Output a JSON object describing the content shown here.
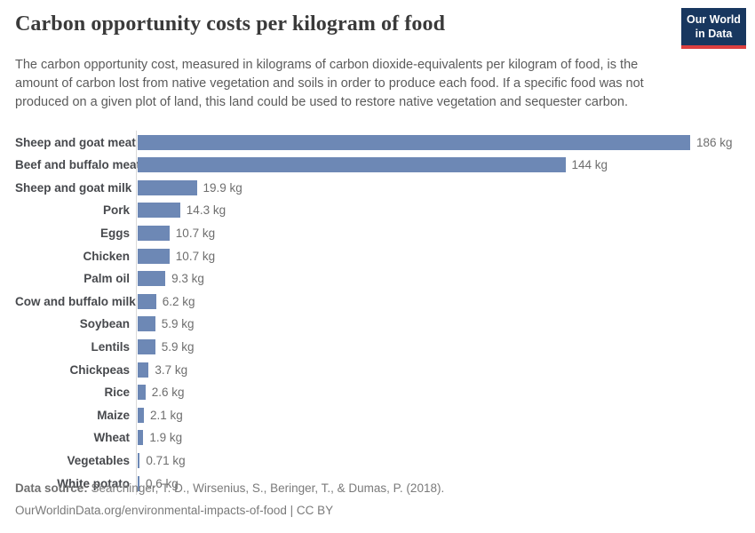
{
  "header": {
    "title": "Carbon opportunity costs per kilogram of food",
    "subtitle": "The carbon opportunity cost, measured in kilograms of carbon dioxide-equivalents per kilogram of food, is the amount of carbon lost from native vegetation and soils in order to produce each food. If a specific food was not produced on a given plot of land, this land could be used to restore native vegetation and sequester carbon."
  },
  "logo": {
    "line1": "Our World",
    "line2": "in Data",
    "bg_color": "#18375f",
    "stripe_color": "#dc3f3f"
  },
  "chart_data": {
    "type": "bar",
    "orientation": "horizontal",
    "title": "Carbon opportunity costs per kilogram of food",
    "xlabel": "",
    "ylabel": "",
    "unit": "kg",
    "xlim": [
      0,
      186
    ],
    "grid": false,
    "bar_color": "#6d88b5",
    "value_label_position": "right",
    "categories": [
      "Sheep and goat meat",
      "Beef and buffalo meat",
      "Sheep and goat milk",
      "Pork",
      "Eggs",
      "Chicken",
      "Palm oil",
      "Cow and buffalo milk",
      "Soybean",
      "Lentils",
      "Chickpeas",
      "Rice",
      "Maize",
      "Wheat",
      "Vegetables",
      "White potato"
    ],
    "values": [
      186,
      144,
      19.9,
      14.3,
      10.7,
      10.7,
      9.3,
      6.2,
      5.9,
      5.9,
      3.7,
      2.6,
      2.1,
      1.9,
      0.71,
      0.6
    ],
    "value_labels": [
      "186 kg",
      "144 kg",
      "19.9 kg",
      "14.3 kg",
      "10.7 kg",
      "10.7 kg",
      "9.3 kg",
      "6.2 kg",
      "5.9 kg",
      "5.9 kg",
      "3.7 kg",
      "2.6 kg",
      "2.1 kg",
      "1.9 kg",
      "0.71 kg",
      "0.6 kg"
    ]
  },
  "footer": {
    "datasource_label": "Data source:",
    "datasource_text": " Searchinger, T. D., Wirsenius, S., Beringer, T., & Dumas, P. (2018).",
    "link_text": "OurWorldinData.org/environmental-impacts-of-food",
    "license_suffix": " | CC BY"
  }
}
